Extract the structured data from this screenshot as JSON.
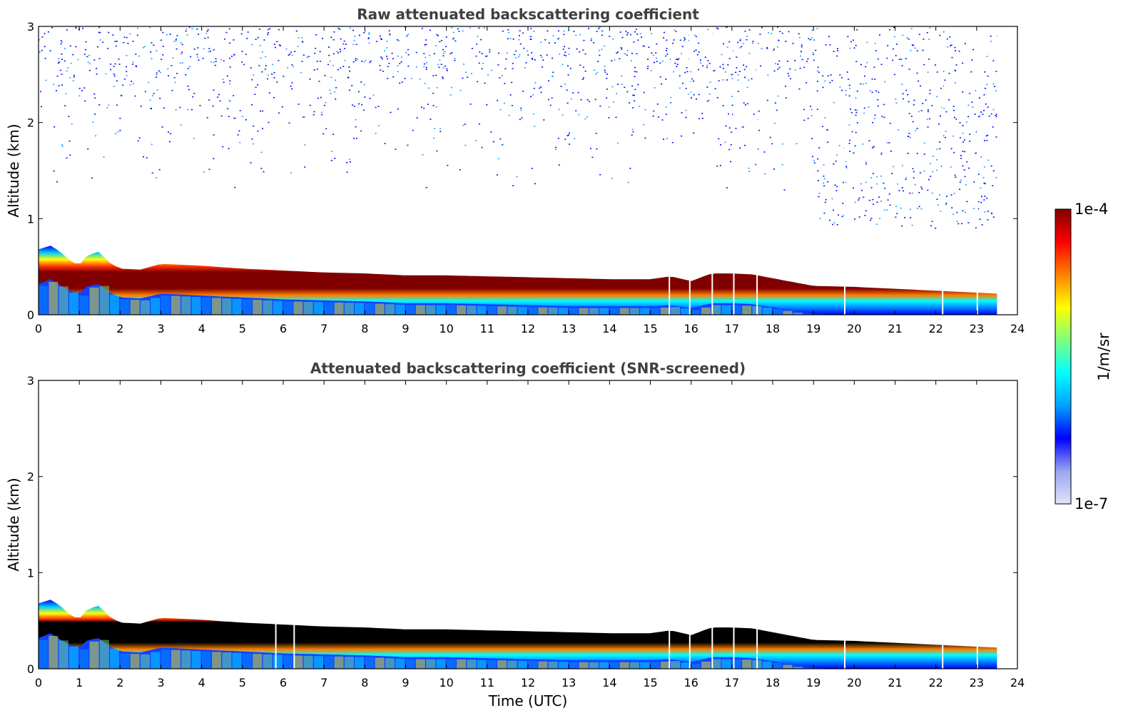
{
  "figure": {
    "colormap": [
      "#e0e4f8",
      "#9aa6f0",
      "#0000ff",
      "#00a0ff",
      "#00ffff",
      "#80ff80",
      "#ffff00",
      "#ff8000",
      "#ff0000",
      "#800000"
    ],
    "screened_color": "#000000"
  },
  "chart_data": [
    {
      "type": "heatmap",
      "title": "Raw attenuated backscattering coefficient",
      "xlabel": "",
      "ylabel": "Altitude (km)",
      "xlim": [
        0,
        24
      ],
      "ylim": [
        0,
        3
      ],
      "xticks": [
        "0",
        "1",
        "2",
        "3",
        "4",
        "5",
        "6",
        "7",
        "8",
        "9",
        "10",
        "11",
        "12",
        "13",
        "14",
        "15",
        "16",
        "17",
        "18",
        "19",
        "20",
        "21",
        "22",
        "23",
        "24"
      ],
      "yticks": [
        "0",
        "1",
        "2",
        "3"
      ],
      "data_end_time": 23.5,
      "gap_times": [
        15.45,
        15.95,
        16.5,
        17.03,
        17.6,
        19.75,
        22.15,
        23.0
      ],
      "layer_top_km": {
        "time": [
          0,
          0.3,
          0.55,
          0.8,
          1.0,
          1.2,
          1.5,
          1.7,
          2.0,
          2.5,
          3.0,
          4.0,
          5.0,
          6.0,
          7.0,
          8.0,
          9.0,
          10.0,
          11.0,
          12.0,
          13.0,
          14.0,
          15.0,
          15.5,
          16.0,
          16.5,
          17.0,
          17.5,
          18.0,
          18.5,
          19.0,
          20.0,
          21.0,
          22.0,
          23.0,
          23.5
        ],
        "value": [
          0.68,
          0.72,
          0.65,
          0.55,
          0.52,
          0.62,
          0.66,
          0.55,
          0.48,
          0.47,
          0.53,
          0.51,
          0.48,
          0.46,
          0.44,
          0.43,
          0.41,
          0.41,
          0.4,
          0.39,
          0.38,
          0.37,
          0.37,
          0.4,
          0.35,
          0.43,
          0.43,
          0.42,
          0.38,
          0.34,
          0.3,
          0.29,
          0.27,
          0.25,
          0.23,
          0.22
        ]
      },
      "layer_peak_km": {
        "time": [
          0,
          0.3,
          0.55,
          0.8,
          1.0,
          1.2,
          1.5,
          1.7,
          2.0,
          2.5,
          3.0,
          4.0,
          5.0,
          6.0,
          7.0,
          8.0,
          9.0,
          10.0,
          11.0,
          12.0,
          13.0,
          14.0,
          15.0,
          15.5,
          16.0,
          16.5,
          17.0,
          17.5,
          18.0,
          18.5,
          19.0,
          20.0,
          21.0,
          22.0,
          23.0,
          23.5
        ],
        "value": [
          0.5,
          0.55,
          0.48,
          0.42,
          0.4,
          0.48,
          0.5,
          0.42,
          0.36,
          0.35,
          0.4,
          0.38,
          0.36,
          0.34,
          0.33,
          0.32,
          0.3,
          0.3,
          0.29,
          0.28,
          0.27,
          0.27,
          0.27,
          0.28,
          0.25,
          0.3,
          0.3,
          0.29,
          0.26,
          0.22,
          0.19,
          0.17,
          0.16,
          0.14,
          0.12,
          0.12
        ]
      },
      "upper_noise_start_time": 19.0,
      "upper_noise_bottom_km": 0.9
    },
    {
      "type": "heatmap",
      "title": "Attenuated backscattering coefficient (SNR-screened)",
      "xlabel": "Time (UTC)",
      "ylabel": "Altitude (km)",
      "xlim": [
        0,
        24
      ],
      "ylim": [
        0,
        3
      ],
      "xticks": [
        "0",
        "1",
        "2",
        "3",
        "4",
        "5",
        "6",
        "7",
        "8",
        "9",
        "10",
        "11",
        "12",
        "13",
        "14",
        "15",
        "16",
        "17",
        "18",
        "19",
        "20",
        "21",
        "22",
        "23",
        "24"
      ],
      "yticks": [
        "0",
        "1",
        "2",
        "3"
      ],
      "data_end_time": 23.5,
      "gap_times": [
        5.8,
        6.25,
        15.45,
        15.95,
        16.5,
        17.03,
        17.6,
        19.75,
        22.15,
        23.0
      ],
      "screened_black_core": true
    }
  ],
  "colorbar": {
    "label": "1/m/sr",
    "max_label": "1e-4",
    "min_label": "1e-7",
    "scale": "log",
    "range": [
      1e-07,
      0.0001
    ]
  }
}
